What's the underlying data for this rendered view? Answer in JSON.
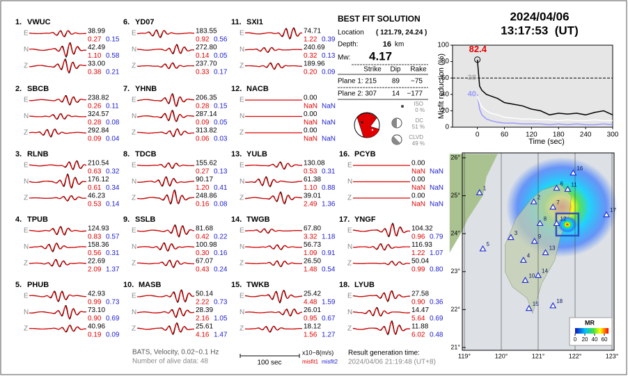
{
  "stations": [
    {
      "number": "1.",
      "name": "VWUC",
      "components": [
        {
          "amplitude": "38.99",
          "misfit1": "0.27",
          "misfit2": "0.15"
        },
        {
          "amplitude": "42.49",
          "misfit1": "1.10",
          "misfit2": "0.58"
        },
        {
          "amplitude": "33.00",
          "misfit1": "0.38",
          "misfit2": "0.21"
        }
      ]
    },
    {
      "number": "2.",
      "name": "SBCB",
      "components": [
        {
          "amplitude": "238.82",
          "misfit1": "0.26",
          "misfit2": "0.11"
        },
        {
          "amplitude": "324.57",
          "misfit1": "0.28",
          "misfit2": "0.08"
        },
        {
          "amplitude": "292.84",
          "misfit1": "0.09",
          "misfit2": "0.04"
        }
      ]
    },
    {
      "number": "3.",
      "name": "RLNB",
      "components": [
        {
          "amplitude": "210.54",
          "misfit1": "0.63",
          "misfit2": "0.32"
        },
        {
          "amplitude": "176.12",
          "misfit1": "0.61",
          "misfit2": "0.34"
        },
        {
          "amplitude": "46.23",
          "misfit1": "0.53",
          "misfit2": "0.14"
        }
      ]
    },
    {
      "number": "4.",
      "name": "TPUB",
      "components": [
        {
          "amplitude": "124.93",
          "misfit1": "0.83",
          "misfit2": "0.57"
        },
        {
          "amplitude": "158.36",
          "misfit1": "0.56",
          "misfit2": "0.31"
        },
        {
          "amplitude": "22.69",
          "misfit1": "2.09",
          "misfit2": "1.37"
        }
      ]
    },
    {
      "number": "5.",
      "name": "PHUB",
      "components": [
        {
          "amplitude": "42.93",
          "misfit1": "0.99",
          "misfit2": "0.73"
        },
        {
          "amplitude": "73.10",
          "misfit1": "0.90",
          "misfit2": "0.69"
        },
        {
          "amplitude": "40.96",
          "misfit1": "0.19",
          "misfit2": "0.09"
        }
      ]
    },
    {
      "number": "6.",
      "name": "YD07",
      "components": [
        {
          "amplitude": "183.55",
          "misfit1": "0.92",
          "misfit2": "0.56"
        },
        {
          "amplitude": "272.80",
          "misfit1": "0.14",
          "misfit2": "0.05"
        },
        {
          "amplitude": "237.70",
          "misfit1": "0.33",
          "misfit2": "0.17"
        }
      ]
    },
    {
      "number": "7.",
      "name": "YHNB",
      "components": [
        {
          "amplitude": "206.35",
          "misfit1": "0.28",
          "misfit2": "0.15"
        },
        {
          "amplitude": "287.14",
          "misfit1": "0.09",
          "misfit2": "0.05"
        },
        {
          "amplitude": "313.82",
          "misfit1": "0.06",
          "misfit2": "0.03"
        }
      ]
    },
    {
      "number": "8.",
      "name": "TDCB",
      "components": [
        {
          "amplitude": "155.62",
          "misfit1": "0.27",
          "misfit2": "0.13"
        },
        {
          "amplitude": "90.17",
          "misfit1": "1.20",
          "misfit2": "0.41"
        },
        {
          "amplitude": "248.86",
          "misfit1": "0.16",
          "misfit2": "0.08"
        }
      ]
    },
    {
      "number": "9.",
      "name": "SSLB",
      "components": [
        {
          "amplitude": "81.68",
          "misfit1": "0.42",
          "misfit2": "0.22"
        },
        {
          "amplitude": "100.98",
          "misfit1": "0.30",
          "misfit2": "0.16"
        },
        {
          "amplitude": "67.07",
          "misfit1": "0.43",
          "misfit2": "0.24"
        }
      ]
    },
    {
      "number": "10.",
      "name": "MASB",
      "components": [
        {
          "amplitude": "50.14",
          "misfit1": "2.22",
          "misfit2": "0.73"
        },
        {
          "amplitude": "28.39",
          "misfit1": "2.16",
          "misfit2": "1.05"
        },
        {
          "amplitude": "25.61",
          "misfit1": "4.16",
          "misfit2": "1.47"
        }
      ]
    },
    {
      "number": "11.",
      "name": "SXI1",
      "components": [
        {
          "amplitude": "74.71",
          "misfit1": "1.22",
          "misfit2": "0.39"
        },
        {
          "amplitude": "240.69",
          "misfit1": "0.32",
          "misfit2": "0.13"
        },
        {
          "amplitude": "189.96",
          "misfit1": "0.20",
          "misfit2": "0.09"
        }
      ]
    },
    {
      "number": "12.",
      "name": "NACB",
      "components": [
        {
          "amplitude": "0.00",
          "misfit1": "NaN",
          "misfit2": "NaN"
        },
        {
          "amplitude": "0.00",
          "misfit1": "NaN",
          "misfit2": "NaN"
        },
        {
          "amplitude": "0.00",
          "misfit1": "NaN",
          "misfit2": "NaN"
        }
      ]
    },
    {
      "number": "13.",
      "name": "YULB",
      "components": [
        {
          "amplitude": "130.08",
          "misfit1": "0.53",
          "misfit2": "0.31"
        },
        {
          "amplitude": "61.38",
          "misfit1": "1.10",
          "misfit2": "0.88"
        },
        {
          "amplitude": "39.01",
          "misfit1": "2.49",
          "misfit2": "1.36"
        }
      ]
    },
    {
      "number": "14.",
      "name": "TWGB",
      "components": [
        {
          "amplitude": "67.80",
          "misfit1": "3.32",
          "misfit2": "1.18"
        },
        {
          "amplitude": "56.73",
          "misfit1": "1.09",
          "misfit2": "0.91"
        },
        {
          "amplitude": "26.50",
          "misfit1": "1.48",
          "misfit2": "0.54"
        }
      ]
    },
    {
      "number": "15.",
      "name": "TWKB",
      "components": [
        {
          "amplitude": "25.42",
          "misfit1": "4.48",
          "misfit2": "1.59"
        },
        {
          "amplitude": "26.01",
          "misfit1": "0.95",
          "misfit2": "0.67"
        },
        {
          "amplitude": "18.12",
          "misfit1": "1.56",
          "misfit2": "1.27"
        }
      ]
    },
    {
      "number": "16.",
      "name": "PCYB",
      "components": [
        {
          "amplitude": "0.00",
          "misfit1": "NaN",
          "misfit2": "NaN"
        },
        {
          "amplitude": "0.00",
          "misfit1": "NaN",
          "misfit2": "NaN"
        },
        {
          "amplitude": "0.00",
          "misfit1": "NaN",
          "misfit2": "NaN"
        }
      ]
    },
    {
      "number": "17.",
      "name": "YNGF",
      "components": [
        {
          "amplitude": "104.32",
          "misfit1": "0.96",
          "misfit2": "0.79"
        },
        {
          "amplitude": "116.93",
          "misfit1": "1.22",
          "misfit2": "1.07"
        },
        {
          "amplitude": "50.04",
          "misfit1": "0.99",
          "misfit2": "0.80"
        }
      ]
    },
    {
      "number": "18.",
      "name": "LYUB",
      "components": [
        {
          "amplitude": "27.58",
          "misfit1": "0.90",
          "misfit2": "0.36"
        },
        {
          "amplitude": "14.47",
          "misfit1": "5.64",
          "misfit2": "0.69"
        },
        {
          "amplitude": "11.88",
          "misfit1": "6.02",
          "misfit2": "0.48"
        }
      ]
    }
  ],
  "component_labels": [
    "E",
    "N",
    "Z"
  ],
  "solution": {
    "title": "BEST FIT SOLUTION",
    "location_label": "Location",
    "location": "( 121.79, 24.24 )",
    "depth_label": "Depth:",
    "depth": "16",
    "depth_unit": "km",
    "mw_label": "Mw:",
    "mw": "4.17",
    "headers": [
      "Strike",
      "Dip",
      "Rake"
    ],
    "planes": [
      {
        "label": "Plane 1:",
        "values": [
          "215",
          "89",
          "−75"
        ]
      },
      {
        "label": "Plane 2:",
        "values": [
          "307",
          "14",
          "−177"
        ]
      }
    ],
    "components": [
      {
        "label": "ISO",
        "percent": "0 %"
      },
      {
        "label": "DC",
        "percent": "51 %"
      },
      {
        "label": "CLVD",
        "percent": "49 %"
      }
    ]
  },
  "origin_time": {
    "date": "2024/04/06",
    "time": "13:17:53  (UT)"
  },
  "chart_data": {
    "type": "line",
    "y_label": "Misfit reduction (%)",
    "x_label": "Time (sec)",
    "x": [
      0,
      5,
      10,
      20,
      30,
      45,
      60,
      80,
      100,
      120,
      140,
      160,
      180,
      200,
      220,
      240,
      260,
      280,
      300
    ],
    "series": [
      {
        "color": "#000000",
        "values": [
          82.4,
          50,
          45,
          40,
          38,
          35,
          30,
          28,
          26,
          22,
          20,
          15,
          17,
          16,
          17,
          15,
          18,
          20,
          15
        ]
      },
      {
        "color": "#ffffff",
        "values": [
          38,
          30,
          25,
          20,
          17,
          15,
          12,
          11,
          10,
          10,
          9,
          9,
          8,
          9,
          8,
          8,
          9,
          8,
          8
        ]
      },
      {
        "color": "#9999ff",
        "values": [
          40,
          22,
          15,
          10,
          8,
          6,
          5,
          5,
          4,
          4,
          4,
          3,
          4,
          3,
          4,
          3,
          3,
          4,
          3
        ]
      }
    ],
    "reference_line": 60,
    "xlim": [
      -55,
      300
    ],
    "ylim": [
      0,
      100
    ],
    "xticks": [
      0,
      60,
      120,
      180,
      240,
      300
    ],
    "yticks": [
      0,
      20,
      40,
      60,
      80,
      100
    ]
  },
  "map": {
    "xlim": [
      119,
      123
    ],
    "ylim": [
      21,
      26
    ],
    "xticks": [
      {
        "value": 119,
        "label": "119°"
      },
      {
        "value": 120,
        "label": "120°"
      },
      {
        "value": 121,
        "label": "121°"
      },
      {
        "value": 122,
        "label": "122°"
      },
      {
        "value": 123,
        "label": "123°"
      }
    ],
    "yticks": [
      {
        "value": 21,
        "label": "21°"
      },
      {
        "value": 22,
        "label": "22°"
      },
      {
        "value": 23,
        "label": "23°"
      },
      {
        "value": 24,
        "label": "24°"
      },
      {
        "value": 25,
        "label": "25°"
      },
      {
        "value": 26,
        "label": "26°"
      }
    ],
    "epicenter": [
      121.79,
      24.24
    ],
    "stations": [
      {
        "label": "1",
        "lon": 119.41,
        "lat": 25.08
      },
      {
        "label": "2",
        "lon": 120.88,
        "lat": 24.84
      },
      {
        "label": "3",
        "lon": 120.26,
        "lat": 23.9
      },
      {
        "label": "4",
        "lon": 120.6,
        "lat": 23.3
      },
      {
        "label": "5",
        "lon": 119.5,
        "lat": 23.6
      },
      {
        "label": "6",
        "lon": 121.5,
        "lat": 25.2
      },
      {
        "label": "7",
        "lon": 121.4,
        "lat": 24.7
      },
      {
        "label": "8",
        "lon": 121.05,
        "lat": 24.27
      },
      {
        "label": "9",
        "lon": 120.9,
        "lat": 23.8
      },
      {
        "label": "10",
        "lon": 120.65,
        "lat": 22.77
      },
      {
        "label": "11",
        "lon": 121.8,
        "lat": 25.17
      },
      {
        "label": "12",
        "lon": 121.5,
        "lat": 24.27
      },
      {
        "label": "13",
        "lon": 121.2,
        "lat": 23.5
      },
      {
        "label": "14",
        "lon": 121.0,
        "lat": 22.9
      },
      {
        "label": "15",
        "lon": 120.75,
        "lat": 22.03
      },
      {
        "label": "16",
        "lon": 121.95,
        "lat": 25.6
      },
      {
        "label": "17",
        "lon": 122.85,
        "lat": 24.5
      },
      {
        "label": "18",
        "lon": 121.4,
        "lat": 22.1
      }
    ],
    "colorbar": {
      "title": "MR",
      "ticks": [
        0,
        20,
        40,
        60
      ]
    }
  },
  "footer": {
    "source": "BATS, Velocity, 0.02~0.1 Hz",
    "alive": "Number of alive data: 48",
    "scale": "100 sec",
    "units": "x10−8(m/s)",
    "misfit1": "misfit1",
    "misfit2": "misfit2",
    "result_label": "Result generation time:",
    "result_time": "2024/04/06 21:19:48 (UT+8)"
  }
}
